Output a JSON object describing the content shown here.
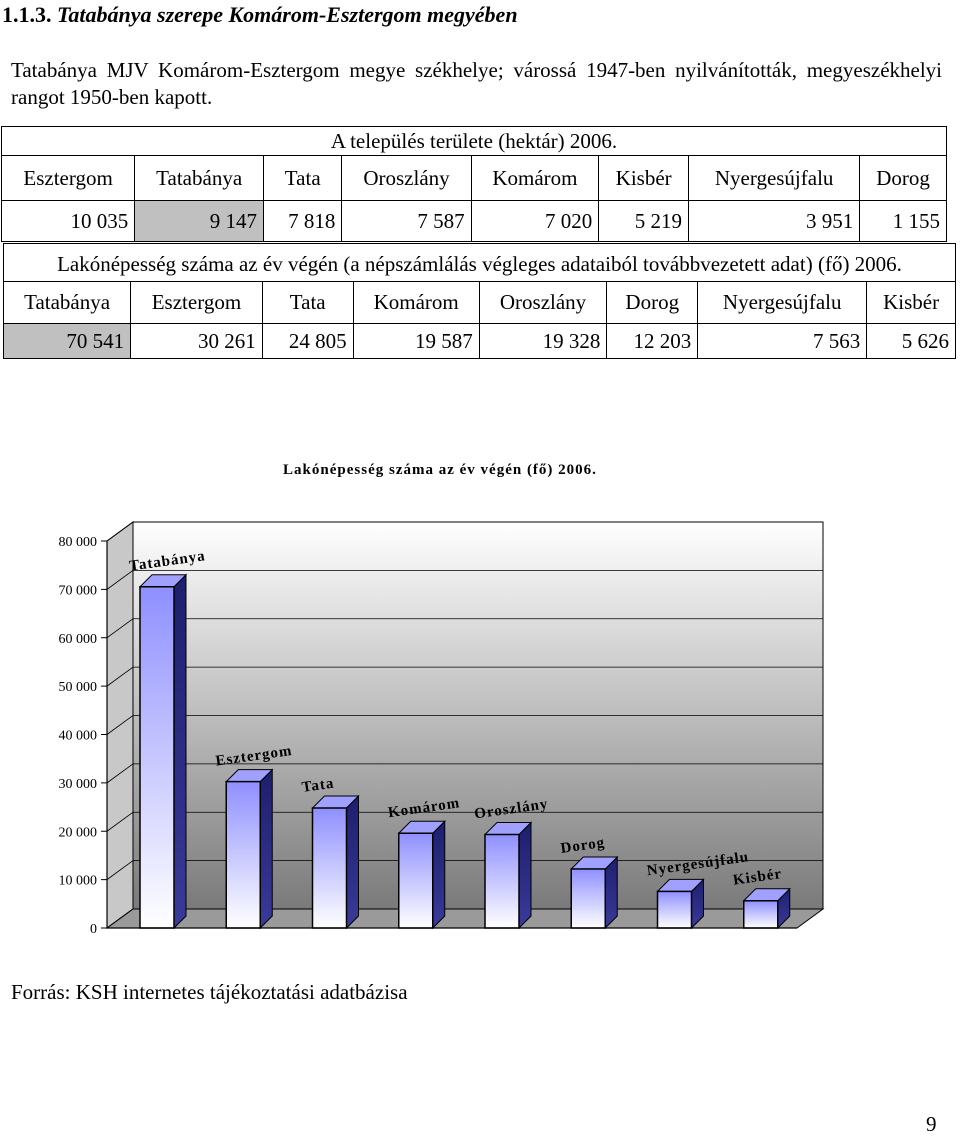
{
  "heading": {
    "number": "1.1.3.",
    "title": "Tatabánya szerepe Komárom-Esztergom megyében"
  },
  "intro": "Tatabánya MJV Komárom-Esztergom megye székhelye; várossá 1947-ben nyilvánították, megyeszékhelyi rangot 1950-ben kapott.",
  "area_table": {
    "title": "A település területe (hektár) 2006.",
    "names": [
      "Esztergom",
      "Tatabánya",
      "Tata",
      "Oroszlány",
      "Komárom",
      "Kisbér",
      "Nyergesújfalu",
      "Dorog"
    ],
    "values": [
      "10 035",
      "9 147",
      "7 818",
      "7 587",
      "7 020",
      "5 219",
      "3 951",
      "1 155"
    ]
  },
  "pop_table": {
    "title": "Lakónépesség száma az év végén (a népszámlálás végleges adataiból továbbvezetett adat) (fő) 2006.",
    "names": [
      "Tatabánya",
      "Esztergom",
      "Tata",
      "Komárom",
      "Oroszlány",
      "Dorog",
      "Nyergesújfalu",
      "Kisbér"
    ],
    "values": [
      "70 541",
      "30 261",
      "24 805",
      "19 587",
      "19 328",
      "12 203",
      "7 563",
      "5 626"
    ]
  },
  "chart_data": {
    "type": "bar",
    "title": "Lakónépesség száma az év végén (fő) 2006.",
    "categories": [
      "Tatabánya",
      "Esztergom",
      "Tata",
      "Komárom",
      "Oroszlány",
      "Dorog",
      "Nyergesújfalu",
      "Kisbér"
    ],
    "values": [
      70541,
      30261,
      24805,
      19587,
      19328,
      12203,
      7563,
      5626
    ],
    "yticks": [
      "0",
      "10 000",
      "20 000",
      "30 000",
      "40 000",
      "50 000",
      "60 000",
      "70 000",
      "80 000"
    ],
    "ylim": [
      0,
      80000
    ],
    "xlabel": "",
    "ylabel": "",
    "grid": true,
    "colors": {
      "bar_top": "#8f8fff",
      "bar_bottom": "#ffffff",
      "wall_top": "#ffffff",
      "wall_bottom": "#7a7a7a"
    }
  },
  "source": "Forrás: KSH internetes tájékoztatási adatbázisa",
  "page_number": "9"
}
